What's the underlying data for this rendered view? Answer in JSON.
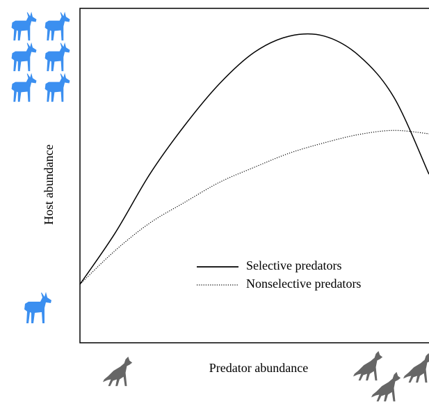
{
  "chart_data": {
    "type": "line",
    "x_label": "Predator abundance",
    "y_label": "Host abundance",
    "x": [
      0,
      10,
      20,
      30,
      40,
      50,
      60,
      70,
      80,
      90,
      100
    ],
    "xlim": [
      0,
      100
    ],
    "ylim": [
      0,
      100
    ],
    "series": [
      {
        "name": "Selective predators",
        "color": "#000000",
        "dash": "solid",
        "values": [
          17.5,
          32.7,
          50.4,
          65,
          77.5,
          86.9,
          91.7,
          91.7,
          85.8,
          73.3,
          50.4
        ]
      },
      {
        "name": "Nonselective predators",
        "color": "#000000",
        "dash": "dotted",
        "values": [
          17.5,
          27.5,
          35.8,
          42,
          48,
          52.5,
          56.7,
          59.8,
          62.3,
          63.5,
          62.5
        ]
      }
    ]
  }
}
